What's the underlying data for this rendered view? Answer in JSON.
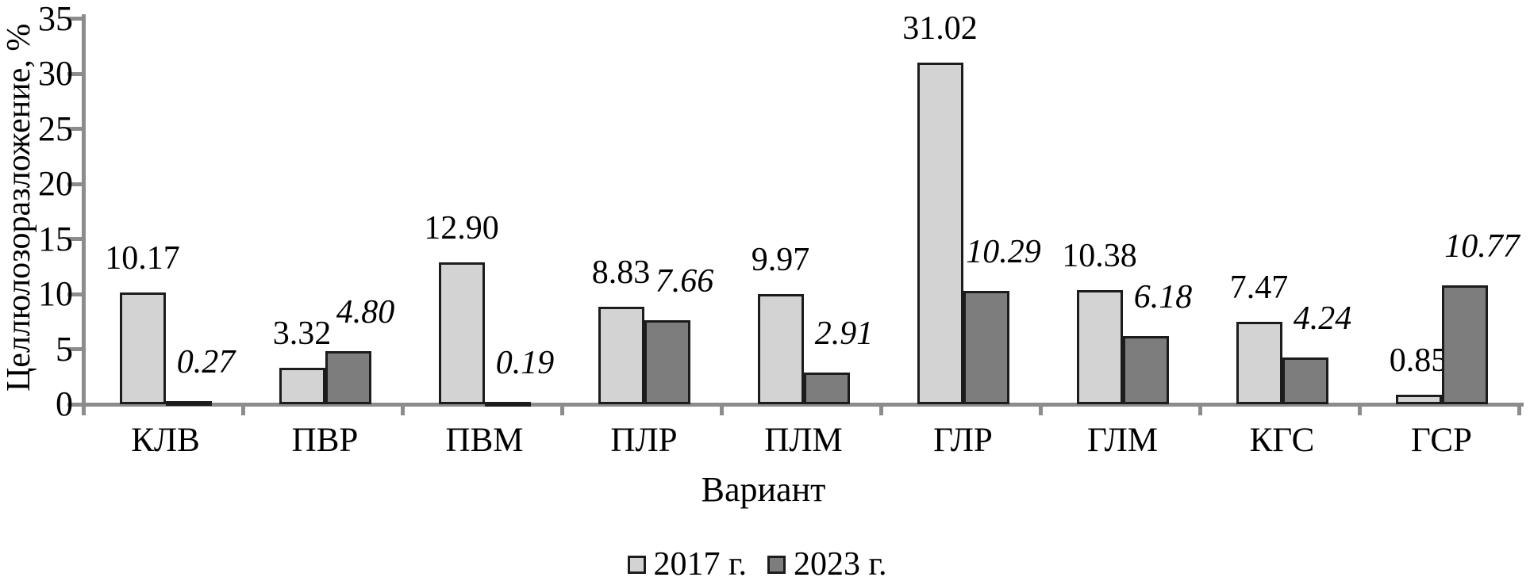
{
  "chart_data": {
    "type": "bar",
    "title": "",
    "xlabel": "Вариант",
    "ylabel": "Целлюлозоразложение, %",
    "categories": [
      "КЛВ",
      "ПВР",
      "ПВМ",
      "ПЛР",
      "ПЛМ",
      "ГЛР",
      "ГЛМ",
      "КГС",
      "ГСР"
    ],
    "series": [
      {
        "name": "2017 г.",
        "values": [
          10.17,
          3.32,
          12.9,
          8.83,
          9.97,
          31.02,
          10.38,
          7.47,
          0.85
        ],
        "color": "#d3d3d3",
        "label_style": "normal"
      },
      {
        "name": "2023 г.",
        "values": [
          0.27,
          4.8,
          0.19,
          7.66,
          2.91,
          10.29,
          6.18,
          4.24,
          10.77
        ],
        "color": "#7d7d7d",
        "label_style": "italic"
      }
    ],
    "value_label_decimals": 2,
    "ylim": [
      0,
      35
    ],
    "yticks": [
      0,
      5,
      10,
      15,
      20,
      25,
      30,
      35
    ],
    "grid": false,
    "legend_position": "bottom",
    "colors": {
      "bar_border": "#1c1c1c",
      "axis": "#8c8c8c",
      "text": "#000000",
      "background": "#ffffff"
    }
  }
}
